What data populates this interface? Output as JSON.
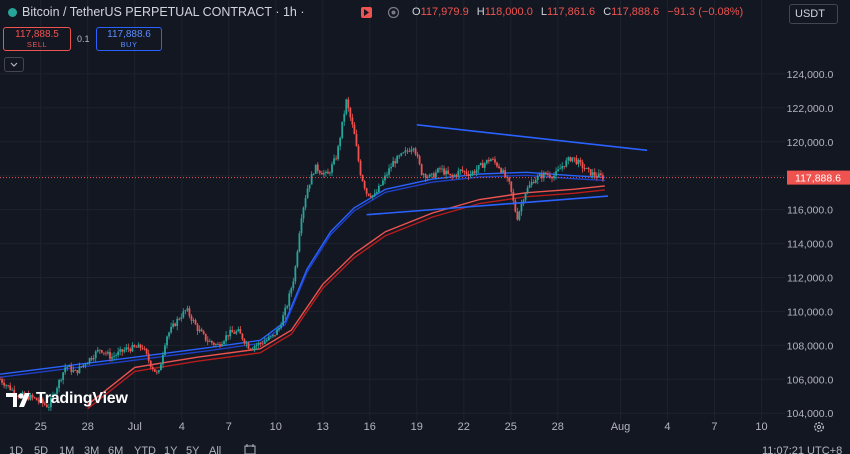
{
  "header": {
    "symbol_title": "Bitcoin / TetherUS PERPETUAL CONTRACT · 1h ·",
    "ohlc": {
      "open_label": "O",
      "open": "117,979.9",
      "high_label": "H",
      "high": "118,000.0",
      "low_label": "L",
      "low": "117,861.6",
      "close_label": "C",
      "close": "117,888.6",
      "change": "−91.3 (−0.08%)"
    },
    "currency": "USDT"
  },
  "trade": {
    "sell_price": "117,888.5",
    "sell_label": "SELL",
    "spread": "0.1",
    "buy_price": "117,888.6",
    "buy_label": "BUY"
  },
  "brand": {
    "logo_text": "TradingView"
  },
  "bottombar": {
    "timeframes": [
      "1D",
      "5D",
      "1M",
      "3M",
      "6M",
      "YTD",
      "1Y",
      "5Y",
      "All"
    ],
    "clock": "11:07:21 UTC+8"
  },
  "colors": {
    "up": "#26a69a",
    "down": "#ef5350",
    "accent": "#2962ff",
    "background": "#131722"
  },
  "chart_data": {
    "type": "candlestick",
    "current_price_label": "117,888.6",
    "y_ticks": [
      "124,000.0",
      "122,000.0",
      "120,000.0",
      "118,000.0",
      "116,000.0",
      "114,000.0",
      "112,000.0",
      "110,000.0",
      "108,000.0",
      "106,000.0",
      "104,000.0"
    ],
    "y_tick_values": [
      124000,
      122000,
      120000,
      118000,
      116000,
      114000,
      112000,
      110000,
      108000,
      106000,
      104000
    ],
    "ylim": [
      103600,
      126000
    ],
    "x_ticks": [
      "25",
      "28",
      "Jul",
      "4",
      "7",
      "10",
      "13",
      "16",
      "19",
      "22",
      "25",
      "28",
      "Aug",
      "4",
      "7",
      "10"
    ],
    "x_tick_day_index": [
      -6,
      -3,
      0,
      3,
      6,
      9,
      12,
      15,
      18,
      21,
      24,
      27,
      31,
      34,
      37,
      40
    ],
    "xlim_days": [
      -8.6,
      41.5
    ],
    "price_path": [
      [
        -8.6,
        106000
      ],
      [
        -7.5,
        105100
      ],
      [
        -6.5,
        104900
      ],
      [
        -5.5,
        104400
      ],
      [
        -5.0,
        105500
      ],
      [
        -4.4,
        106800
      ],
      [
        -3.8,
        106400
      ],
      [
        -3.0,
        107100
      ],
      [
        -2.2,
        107800
      ],
      [
        -1.5,
        107300
      ],
      [
        -0.5,
        107800
      ],
      [
        0.5,
        107900
      ],
      [
        1.0,
        106900
      ],
      [
        1.5,
        106200
      ],
      [
        2.0,
        108500
      ],
      [
        2.8,
        109600
      ],
      [
        3.3,
        110100
      ],
      [
        4.0,
        109000
      ],
      [
        4.6,
        108300
      ],
      [
        5.3,
        108000
      ],
      [
        6.0,
        108700
      ],
      [
        6.6,
        108800
      ],
      [
        7.3,
        107900
      ],
      [
        8.0,
        108100
      ],
      [
        8.8,
        108500
      ],
      [
        9.2,
        109000
      ],
      [
        9.7,
        110300
      ],
      [
        10.2,
        112200
      ],
      [
        10.6,
        115500
      ],
      [
        11.0,
        117200
      ],
      [
        11.5,
        118500
      ],
      [
        12.3,
        118000
      ],
      [
        12.9,
        119200
      ],
      [
        13.5,
        122400
      ],
      [
        14.0,
        120500
      ],
      [
        14.4,
        118200
      ],
      [
        14.8,
        117000
      ],
      [
        15.3,
        116800
      ],
      [
        15.8,
        117600
      ],
      [
        16.5,
        118800
      ],
      [
        17.2,
        119300
      ],
      [
        17.8,
        119800
      ],
      [
        18.3,
        118200
      ],
      [
        18.9,
        117900
      ],
      [
        19.5,
        118400
      ],
      [
        20.2,
        117900
      ],
      [
        20.8,
        118300
      ],
      [
        21.4,
        118100
      ],
      [
        22.0,
        118500
      ],
      [
        22.7,
        119000
      ],
      [
        23.3,
        118500
      ],
      [
        23.9,
        117500
      ],
      [
        24.4,
        115500
      ],
      [
        24.9,
        117000
      ],
      [
        25.5,
        117800
      ],
      [
        26.2,
        118100
      ],
      [
        26.8,
        118000
      ],
      [
        27.3,
        118600
      ],
      [
        27.9,
        119100
      ],
      [
        28.5,
        118600
      ],
      [
        29.0,
        118200
      ],
      [
        29.5,
        118000
      ],
      [
        30.0,
        117888
      ]
    ],
    "ma_blue": [
      [
        -8.6,
        106300
      ],
      [
        0,
        107300
      ],
      [
        5,
        107900
      ],
      [
        8,
        108300
      ],
      [
        9.6,
        109400
      ],
      [
        11,
        112500
      ],
      [
        12.5,
        114700
      ],
      [
        14,
        116100
      ],
      [
        16,
        117200
      ],
      [
        19,
        117800
      ],
      [
        22,
        118100
      ],
      [
        25,
        118200
      ],
      [
        28,
        118000
      ],
      [
        30,
        117900
      ]
    ],
    "ma_red": [
      [
        -3,
        104500
      ],
      [
        0,
        106700
      ],
      [
        4,
        107300
      ],
      [
        8,
        107800
      ],
      [
        10,
        108900
      ],
      [
        12,
        111600
      ],
      [
        14,
        113400
      ],
      [
        16,
        114700
      ],
      [
        19,
        115800
      ],
      [
        22,
        116600
      ],
      [
        25,
        117000
      ],
      [
        28,
        117200
      ],
      [
        30,
        117400
      ]
    ],
    "trendline_upper": [
      [
        18,
        121000
      ],
      [
        32.7,
        119500
      ]
    ],
    "trendline_lower": [
      [
        14.8,
        115700
      ],
      [
        30.2,
        116800
      ]
    ]
  }
}
